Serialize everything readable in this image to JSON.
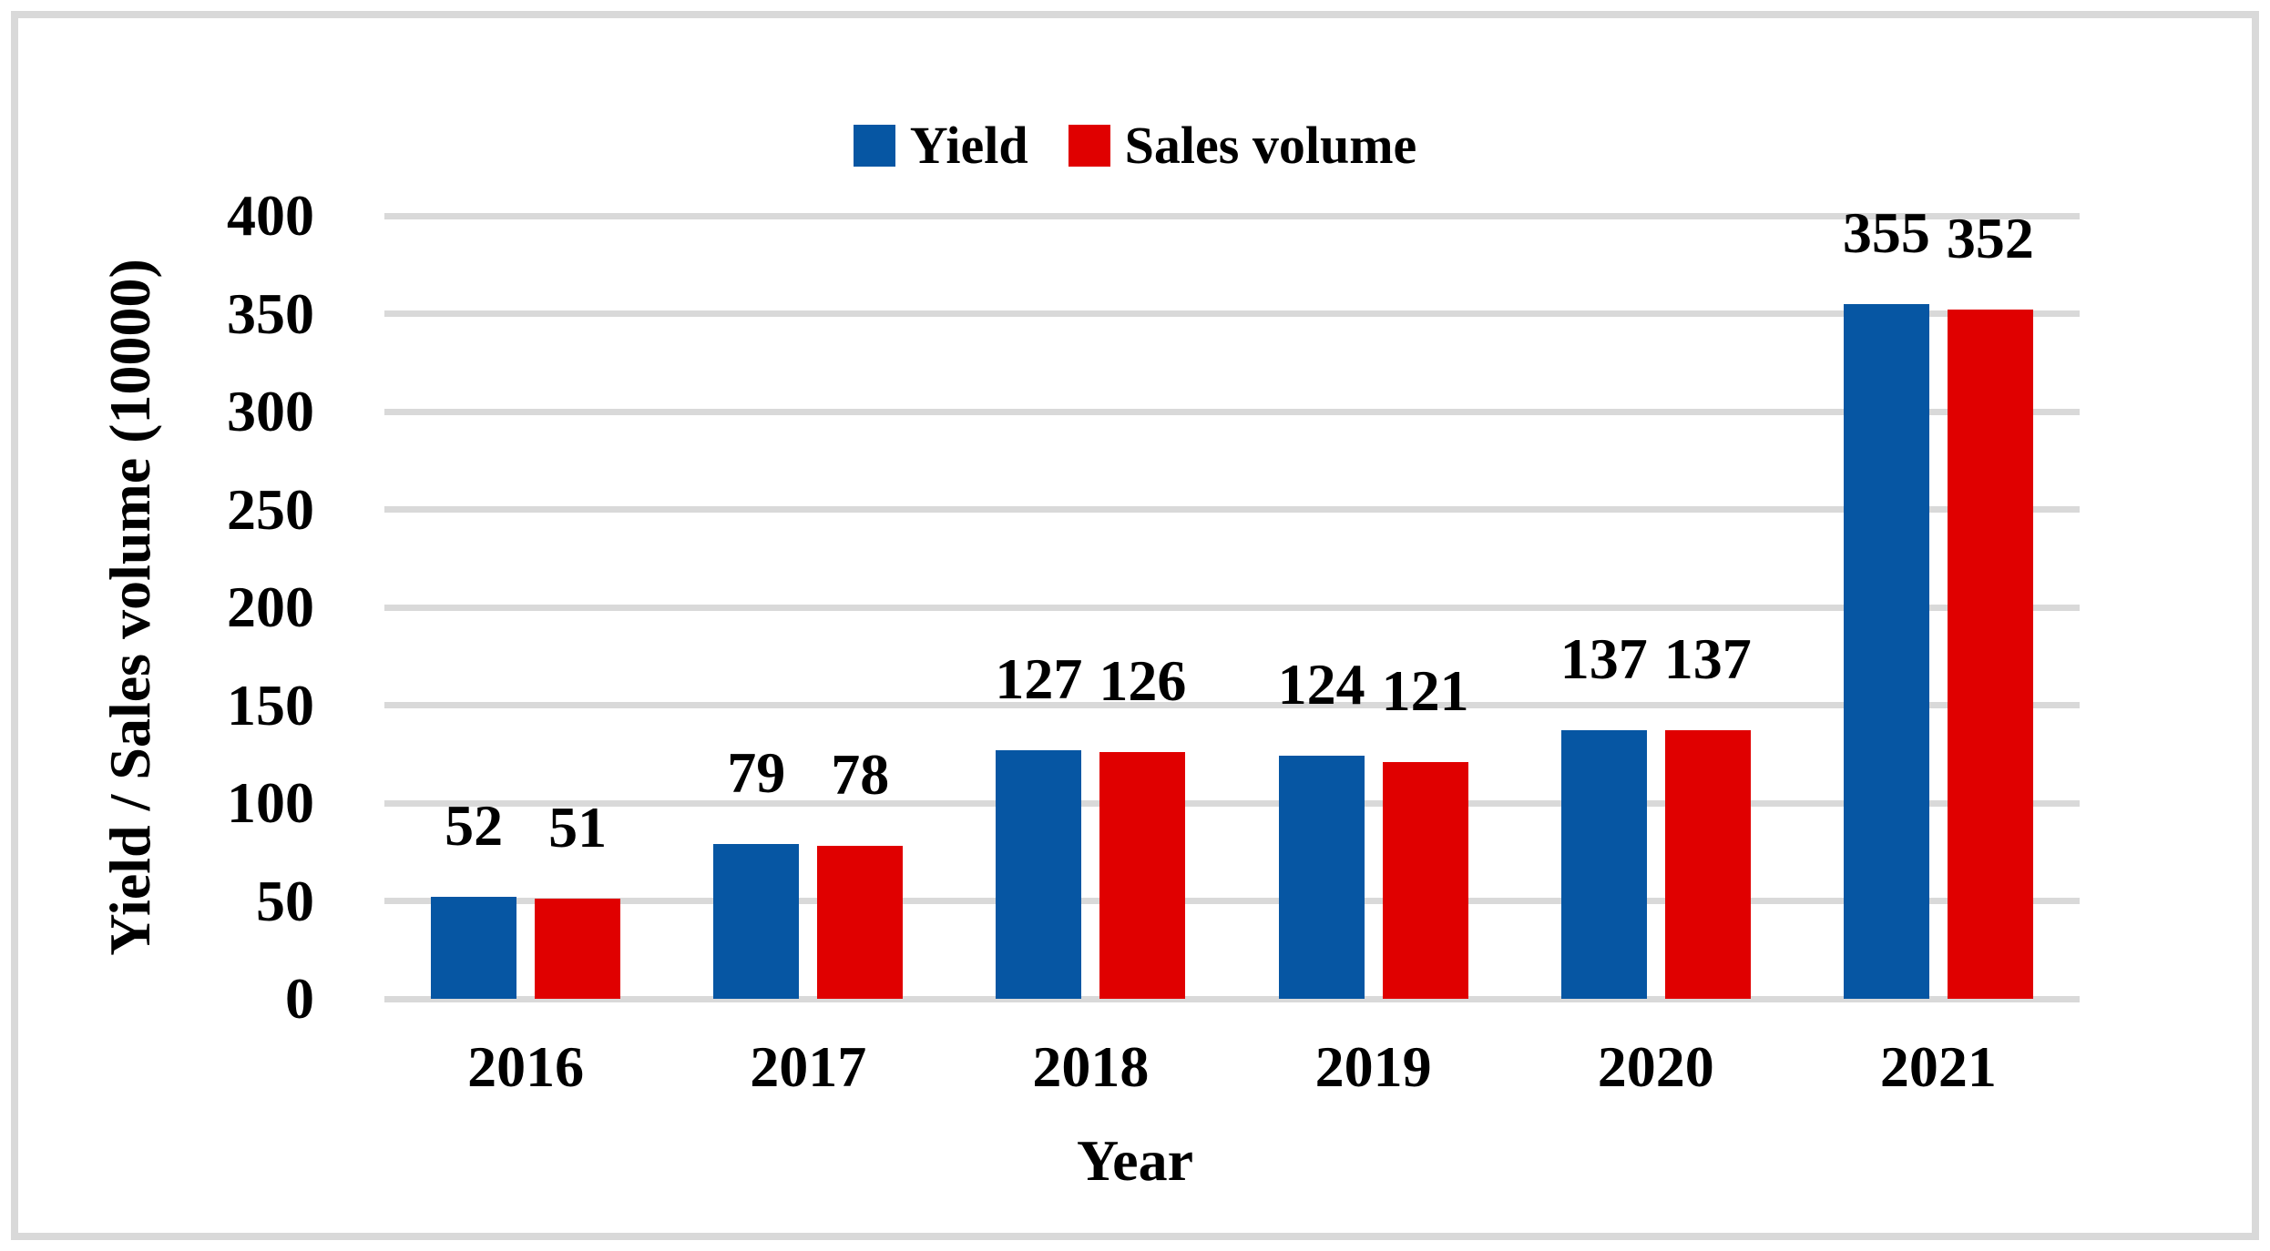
{
  "frame": {
    "border_color": "#D9D9D9",
    "background": "#FFFFFF"
  },
  "legend": {
    "items": [
      {
        "label": "Yield",
        "color": "#0656A3"
      },
      {
        "label": "Sales volume",
        "color": "#E00000"
      }
    ]
  },
  "chart_data": {
    "type": "bar",
    "title": "",
    "categories": [
      "2016",
      "2017",
      "2018",
      "2019",
      "2020",
      "2021"
    ],
    "series": [
      {
        "name": "Yield",
        "color": "#0656A3",
        "values": [
          52,
          79,
          127,
          124,
          137,
          355
        ]
      },
      {
        "name": "Sales volume",
        "color": "#E00000",
        "values": [
          51,
          78,
          126,
          121,
          137,
          352
        ]
      }
    ],
    "xlabel": "Year",
    "ylabel": "Yield / Sales volume (10000)",
    "ylim": [
      0,
      400
    ],
    "yticks": [
      0,
      50,
      100,
      150,
      200,
      250,
      300,
      350,
      400
    ],
    "grid": true,
    "gridline_color": "#D9D9D9",
    "legend_position": "top-center",
    "data_labels": "outside-end",
    "data_label_color": "#000000"
  }
}
